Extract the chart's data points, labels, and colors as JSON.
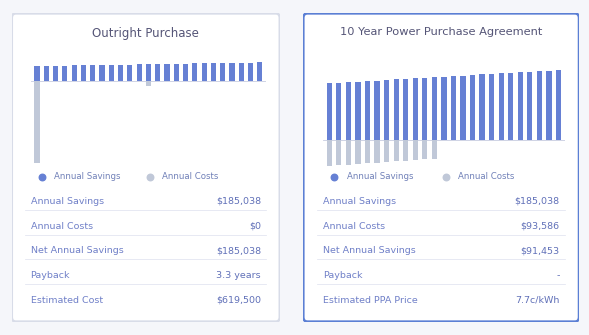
{
  "left_title": "Outright Purchase",
  "right_title": "10 Year Power Purchase Agreement",
  "bar_color_savings": "#6680d4",
  "bar_color_costs": "#c0c8d8",
  "bg_color": "#f5f6fa",
  "card_bg": "#ffffff",
  "card_border_left": "#d8dce8",
  "card_border_right": "#5b7fd4",
  "text_color_label": "#7080c8",
  "text_color_value": "#6070b8",
  "n_bars": 25,
  "legend_savings": "Annual Savings",
  "legend_costs": "Annual Costs",
  "left_rows": [
    [
      "Annual Savings",
      "$185,038"
    ],
    [
      "Annual Costs",
      "$0"
    ],
    [
      "Net Annual Savings",
      "$185,038"
    ],
    [
      "Payback",
      "3.3 years"
    ],
    [
      "Estimated Cost",
      "$619,500"
    ]
  ],
  "right_rows": [
    [
      "Annual Savings",
      "$185,038"
    ],
    [
      "Annual Costs",
      "$93,586"
    ],
    [
      "Net Annual Savings",
      "$91,453"
    ],
    [
      "Payback",
      "-"
    ],
    [
      "Estimated PPA Price",
      "7.7c/kWh"
    ]
  ]
}
